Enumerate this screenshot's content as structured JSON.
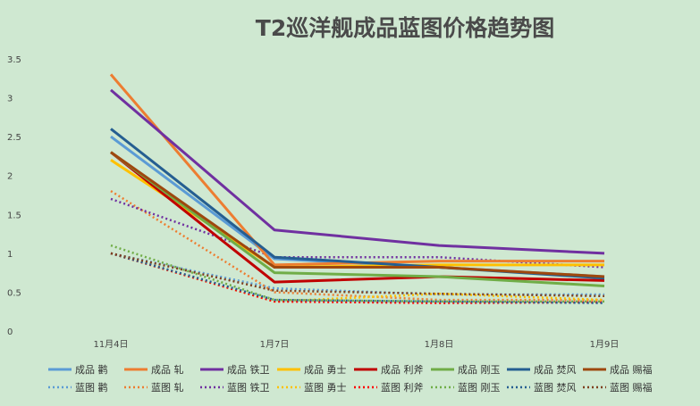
{
  "chart_data": {
    "type": "line",
    "title": "T2巡洋舰成品蓝图价格趋势图",
    "xlabel": "",
    "ylabel": "",
    "categories": [
      "11月4日",
      "1月7日",
      "1月8日",
      "1月9日"
    ],
    "ylim": [
      0,
      3.5
    ],
    "yticks": [
      "0",
      "0.5",
      "1",
      "1.5",
      "2",
      "2.5",
      "3",
      "3.5"
    ],
    "grid": false,
    "legend_position": "bottom",
    "series": [
      {
        "name": "成品 鹳",
        "color": "#5b9bd5",
        "dash": false,
        "values": [
          2.5,
          0.93,
          0.82,
          0.7
        ]
      },
      {
        "name": "成品 轧",
        "color": "#ed7d31",
        "dash": false,
        "values": [
          3.3,
          0.85,
          0.9,
          0.9
        ]
      },
      {
        "name": "成品 铁卫",
        "color": "#7030a0",
        "dash": false,
        "values": [
          3.1,
          1.3,
          1.1,
          1.0
        ]
      },
      {
        "name": "成品 勇士",
        "color": "#ffc000",
        "dash": false,
        "values": [
          2.2,
          0.82,
          0.85,
          0.85
        ]
      },
      {
        "name": "成品 利斧",
        "color": "#c00000",
        "dash": false,
        "values": [
          2.3,
          0.63,
          0.7,
          0.65
        ]
      },
      {
        "name": "成品 刚玉",
        "color": "#70ad47",
        "dash": false,
        "values": [
          2.3,
          0.75,
          0.7,
          0.58
        ]
      },
      {
        "name": "成品 焚风",
        "color": "#255e91",
        "dash": false,
        "values": [
          2.6,
          0.95,
          0.82,
          0.68
        ]
      },
      {
        "name": "成品 赐福",
        "color": "#9e480e",
        "dash": false,
        "values": [
          2.3,
          0.82,
          0.82,
          0.7
        ]
      },
      {
        "name": "蓝图 鹳",
        "color": "#5b9bd5",
        "dash": true,
        "values": [
          1.0,
          0.55,
          0.47,
          0.47
        ]
      },
      {
        "name": "蓝图 轧",
        "color": "#ed7d31",
        "dash": true,
        "values": [
          1.8,
          0.5,
          0.4,
          0.4
        ]
      },
      {
        "name": "蓝图 铁卫",
        "color": "#7030a0",
        "dash": true,
        "values": [
          1.7,
          0.95,
          0.95,
          0.82
        ]
      },
      {
        "name": "蓝图 勇士",
        "color": "#ffc000",
        "dash": true,
        "values": [
          1.0,
          0.38,
          0.48,
          0.4
        ]
      },
      {
        "name": "蓝图 利斧",
        "color": "#ff0000",
        "dash": true,
        "values": [
          1.0,
          0.38,
          0.36,
          0.37
        ]
      },
      {
        "name": "蓝图 刚玉",
        "color": "#70ad47",
        "dash": true,
        "values": [
          1.1,
          0.4,
          0.38,
          0.38
        ]
      },
      {
        "name": "蓝图 焚风",
        "color": "#255e91",
        "dash": true,
        "values": [
          1.0,
          0.4,
          0.38,
          0.36
        ]
      },
      {
        "name": "蓝图 赐福",
        "color": "#7f3f1f",
        "dash": true,
        "values": [
          1.0,
          0.52,
          0.48,
          0.45
        ]
      }
    ]
  }
}
